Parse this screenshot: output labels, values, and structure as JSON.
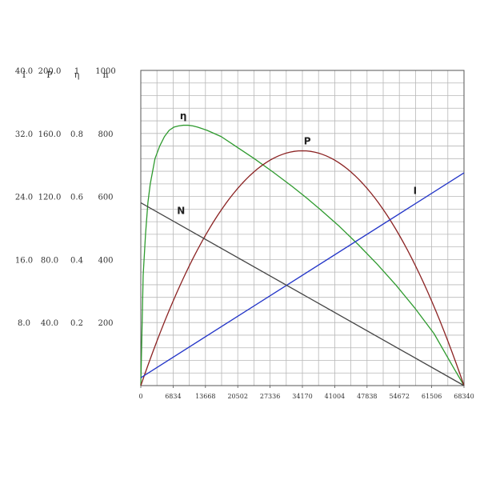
{
  "chart_data": {
    "type": "line",
    "title": "",
    "xlabel": "",
    "x_ticks": [
      "0",
      "6834",
      "13668",
      "20502",
      "27336",
      "34170",
      "41004",
      "47838",
      "54672",
      "61506",
      "68340"
    ],
    "xlim": [
      0,
      68340
    ],
    "grid": true,
    "left_axes": [
      {
        "name": "I",
        "min": 0,
        "max": 40,
        "ticks": [
          "40.0",
          "32.0",
          "24.0",
          "16.0",
          "8.0"
        ],
        "tick_values": [
          40,
          32,
          24,
          16,
          8
        ]
      },
      {
        "name": "P",
        "min": 0,
        "max": 200,
        "ticks": [
          "200.0",
          "160.0",
          "120.0",
          "80.0",
          "40.0"
        ],
        "tick_values": [
          200,
          160,
          120,
          80,
          40
        ]
      },
      {
        "name": "η",
        "min": 0,
        "max": 1,
        "ticks": [
          "1",
          "0.8",
          "0.6",
          "0.4",
          "0.2"
        ],
        "tick_values": [
          1,
          0.8,
          0.6,
          0.4,
          0.2
        ]
      },
      {
        "name": "n",
        "min": 0,
        "max": 1000,
        "ticks": [
          "1000",
          "800",
          "600",
          "400",
          "200"
        ],
        "tick_values": [
          1000,
          800,
          600,
          400,
          200
        ]
      }
    ],
    "series": [
      {
        "name": "η",
        "axis": 2,
        "color": "#2e9a2e",
        "x": [
          0,
          500,
          1000,
          1500,
          2000,
          3000,
          4000,
          5000,
          6000,
          7000,
          8000,
          9000,
          10000,
          11000,
          12000,
          14000,
          17000,
          20000,
          24000,
          28000,
          32000,
          35000,
          38000,
          42000,
          46000,
          50000,
          54000,
          58000,
          62000,
          66000,
          68340
        ],
        "values": [
          0.0,
          0.35,
          0.48,
          0.58,
          0.64,
          0.72,
          0.76,
          0.79,
          0.81,
          0.82,
          0.824,
          0.826,
          0.826,
          0.824,
          0.82,
          0.81,
          0.79,
          0.76,
          0.72,
          0.677,
          0.632,
          0.596,
          0.558,
          0.505,
          0.447,
          0.385,
          0.318,
          0.245,
          0.165,
          0.06,
          0.0
        ]
      },
      {
        "name": "P",
        "axis": 1,
        "color": "#8b2222",
        "x": [
          0,
          6834,
          13668,
          20502,
          27336,
          34170,
          41004,
          47838,
          54672,
          61506,
          68340
        ],
        "values": [
          0,
          53.6,
          95.4,
          125.2,
          143.1,
          149,
          143.1,
          125.2,
          95.4,
          53.6,
          0
        ]
      },
      {
        "name": "I",
        "axis": 0,
        "color": "#2436c8",
        "x": [
          0,
          68340
        ],
        "values": [
          1.0,
          27.0
        ]
      },
      {
        "name": "N",
        "axis": 3,
        "color": "#444444",
        "x": [
          0,
          68340
        ],
        "values": [
          580,
          0
        ]
      }
    ],
    "annotations": [
      {
        "text": "η",
        "series": 0,
        "x": 9000,
        "value": 0.845
      },
      {
        "text": "N",
        "series": 3,
        "x": 8500,
        "value": 545
      },
      {
        "text": "P",
        "series": 1,
        "x": 35200,
        "value": 153
      },
      {
        "text": "I",
        "series": 2,
        "x": 58000,
        "value": 24.3
      }
    ]
  }
}
